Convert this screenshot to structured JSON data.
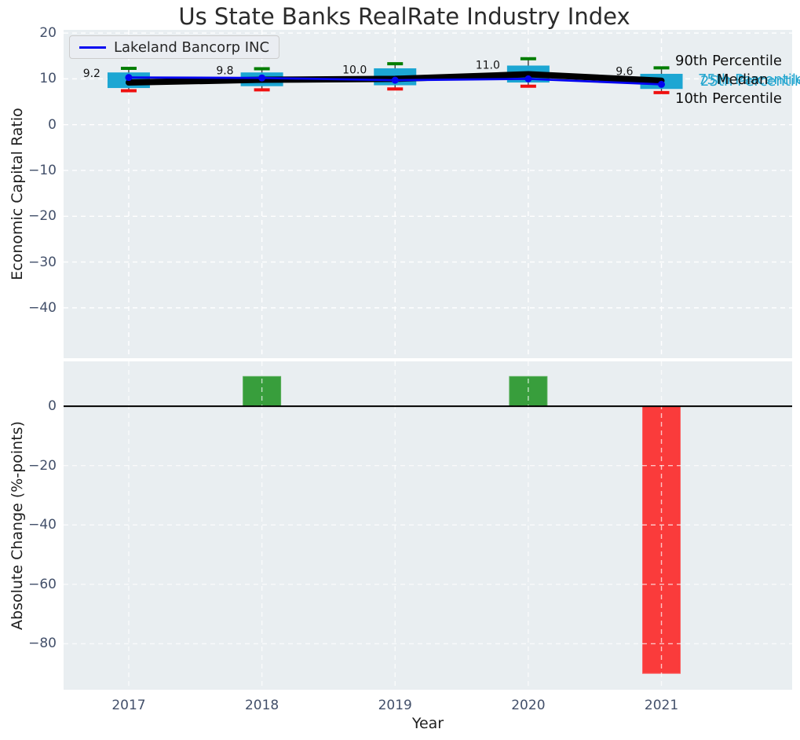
{
  "title": "Us State Banks RealRate Industry Index",
  "legend": {
    "label": "Lakeland Bancorp INC"
  },
  "right_labels": {
    "p90": "90th Percentile",
    "p75": "75th Percentile",
    "median": "Median",
    "p25": "25th Percentile",
    "p10": "10th Percentile"
  },
  "colors": {
    "axes_bg": "#e9eef1",
    "grid": "#ffffff",
    "box_fill": "#1ca6d3",
    "whisker_stem": "#3c3c3c",
    "cap_high_green": "#007d00",
    "cap_low_red": "#ef1010",
    "median_line": "#000000",
    "company_line": "#0404f0",
    "bar_positive": "#389e3c",
    "bar_positive_edge": "#58ae5a",
    "bar_negative": "#fa3b3b",
    "bar_negative_edge": "#fb6060",
    "zero_line": "#000000",
    "tick_text": "#43506a",
    "percentile_text_cyan": "#22a5cf"
  },
  "chart_data": [
    {
      "type": "boxplot-line",
      "title": "Us State Banks RealRate Industry Index",
      "ylabel": "Economic Capital Ratio",
      "x": [
        2017,
        2018,
        2019,
        2020,
        2021
      ],
      "yticks": [
        20,
        10,
        0,
        -10,
        -20,
        -30,
        -40
      ],
      "ylim": [
        -51,
        20.7
      ],
      "grid": true,
      "legend_position": "upper left",
      "series": [
        {
          "name": "Median",
          "values": [
            9.2,
            9.8,
            10.0,
            11.0,
            9.6
          ]
        },
        {
          "name": "Lakeland Bancorp INC",
          "values": [
            10.3,
            10.2,
            9.7,
            10.0,
            8.8
          ]
        },
        {
          "name": "90th Percentile",
          "values": [
            12.3,
            12.2,
            13.3,
            14.4,
            12.4
          ]
        },
        {
          "name": "75th Percentile",
          "values": [
            11.4,
            11.4,
            12.3,
            12.9,
            11.1
          ]
        },
        {
          "name": "25th Percentile",
          "values": [
            8.0,
            8.4,
            8.6,
            9.2,
            7.8
          ]
        },
        {
          "name": "10th Percentile",
          "values": [
            7.4,
            7.6,
            7.8,
            8.4,
            7.0
          ]
        }
      ],
      "median_point_labels": [
        "9.2",
        "9.8",
        "10.0",
        "11.0",
        "9.6"
      ]
    },
    {
      "type": "bar",
      "ylabel": "Absolute Change (%-points)",
      "xlabel": "Year",
      "categories": [
        2017,
        2018,
        2019,
        2020,
        2021
      ],
      "values": [
        0,
        10,
        0,
        10,
        -90
      ],
      "yticks": [
        0,
        -20,
        -40,
        -60,
        -80
      ],
      "ylim": [
        -95.5,
        15.1
      ],
      "grid": true
    }
  ]
}
